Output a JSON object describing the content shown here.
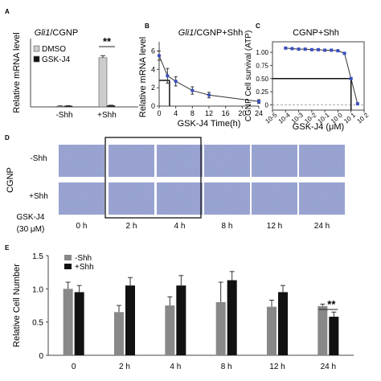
{
  "panels": {
    "a": {
      "letter": "A",
      "title_italic": "Gli1",
      "title_rest": "/CGNP"
    },
    "b": {
      "letter": "B",
      "title_italic": "Gli1",
      "title_rest": "/CGNP+Shh"
    },
    "c": {
      "letter": "C",
      "title": "CGNP+Shh"
    },
    "d": {
      "letter": "D"
    },
    "e": {
      "letter": "E"
    }
  },
  "chart_data": [
    {
      "panel": "A",
      "type": "bar",
      "ylabel": "Relative mRNA level",
      "categories": [
        "-Shh",
        "+Shh"
      ],
      "ylim": [
        0,
        100
      ],
      "yticks": [
        0,
        20,
        40,
        60,
        80,
        100
      ],
      "series": [
        {
          "name": "DMSO",
          "color": "#cccccc",
          "values": [
            1,
            72
          ],
          "errors": [
            0.5,
            3
          ]
        },
        {
          "name": "GSK-J4",
          "color": "#111111",
          "values": [
            1.5,
            2
          ],
          "errors": [
            0.3,
            0.5
          ]
        }
      ],
      "legend": "top-left",
      "annotations": [
        "**"
      ]
    },
    {
      "panel": "B",
      "type": "line",
      "xlabel": "GSK-J4 Time(h)",
      "ylabel": "Relative mRNA level",
      "xticks": [
        0,
        4,
        8,
        12,
        16,
        20,
        24
      ],
      "yticks": [
        0,
        2,
        4,
        6
      ],
      "xlim": [
        0,
        24
      ],
      "ylim": [
        0,
        7
      ],
      "x": [
        0,
        2,
        4,
        8,
        12,
        24
      ],
      "y": [
        5.5,
        3.3,
        2.7,
        1.7,
        1.2,
        0.5
      ],
      "errors": [
        0.5,
        0.8,
        0.5,
        0.4,
        0.3,
        0.2
      ],
      "halflife_x": 2.5,
      "halflife_y": 2.8
    },
    {
      "panel": "C",
      "type": "scatter",
      "xlabel": "GSK-J4 (μM)",
      "ylabel": "CGNP Cell survival (ATP)",
      "xscale": "log",
      "xtick_labels": [
        "10-5",
        "10-4",
        "10-3",
        "10-2",
        "10-1",
        "10 0",
        "10 1",
        "10 2"
      ],
      "yticks": [
        0,
        0.25,
        0.5,
        0.75,
        1
      ],
      "ytick_labels": [
        "0",
        "0.25",
        "0.50",
        "0.75",
        "1.00"
      ],
      "ylim": [
        -0.1,
        1.2
      ],
      "x_exp": [
        -4,
        -3.5,
        -3,
        -2.5,
        -2,
        -1.5,
        -1,
        -0.5,
        0,
        0.5,
        1,
        1.5
      ],
      "y": [
        1.08,
        1.07,
        1.06,
        1.06,
        1.05,
        1.05,
        1.04,
        1.04,
        1.03,
        0.98,
        0.5,
        0.02
      ],
      "ic50_exp": 1,
      "ic50_y": 0.5
    },
    {
      "panel": "E",
      "type": "bar",
      "ylabel": "Relative Cell Number",
      "categories": [
        "0",
        "2 h",
        "4 h",
        "8 h",
        "12 h",
        "24 h"
      ],
      "ylim": [
        0,
        1.5
      ],
      "yticks": [
        0,
        0.5,
        1.0,
        1.5
      ],
      "ytick_labels": [
        "0",
        "0.5",
        "1.0",
        "1.5"
      ],
      "series": [
        {
          "name": "-Shh",
          "color": "#888888",
          "values": [
            1.0,
            0.65,
            0.75,
            0.8,
            0.73,
            0.74
          ],
          "errors": [
            0.1,
            0.1,
            0.13,
            0.3,
            0.1,
            0.03
          ]
        },
        {
          "name": "+Shh",
          "color": "#111111",
          "values": [
            0.95,
            1.05,
            1.05,
            1.13,
            0.95,
            0.58
          ],
          "errors": [
            0.1,
            0.12,
            0.15,
            0.13,
            0.1,
            0.07
          ]
        }
      ],
      "legend": "top-left",
      "annotations": [
        "**"
      ]
    }
  ],
  "micro": {
    "side_label": "CGNP",
    "rows": [
      "-Shh",
      "+Shh"
    ],
    "treatment": [
      "GSK-J4",
      "(30 μM)"
    ],
    "times": [
      "0 h",
      "2 h",
      "4 h",
      "8 h",
      "12 h",
      "24 h"
    ],
    "tile_color": "#9aa4d0"
  }
}
